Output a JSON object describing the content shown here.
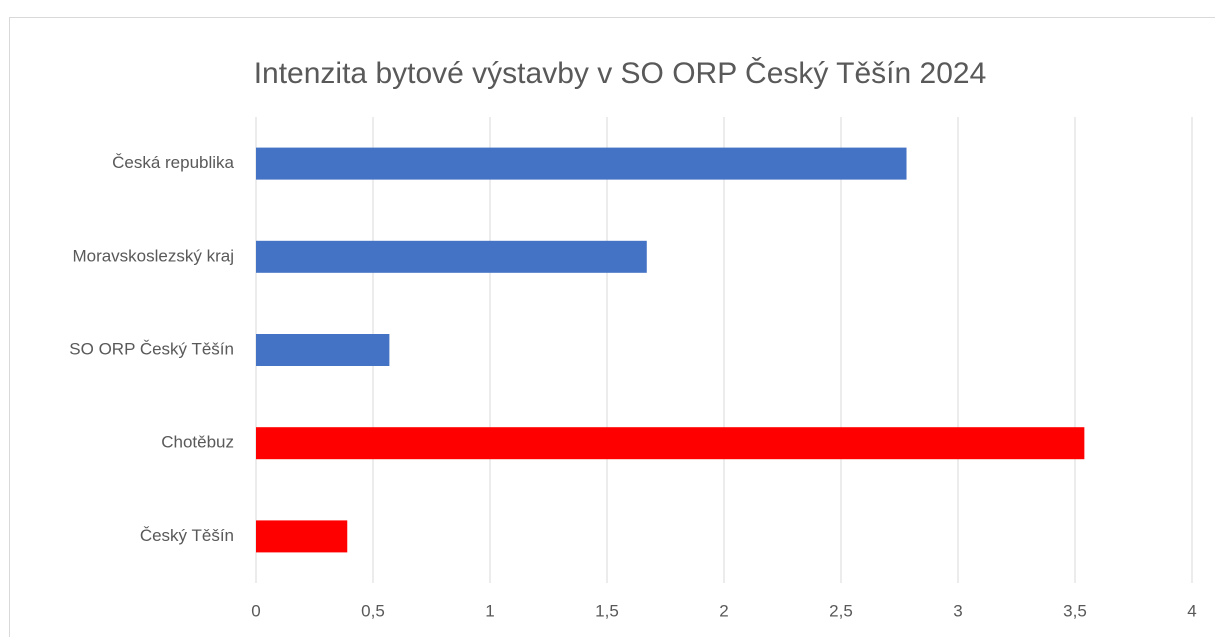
{
  "chart_data": {
    "type": "barh",
    "title": "Intenzita bytové výstavby v SO ORP Český Těšín 2024",
    "categories": [
      "Česká republika",
      "Moravskoslezský kraj",
      "SO ORP Český Těšín",
      "Chotěbuz",
      "Český Těšín"
    ],
    "values": [
      2.78,
      1.67,
      0.57,
      3.54,
      0.39
    ],
    "colors": [
      "#4472c4",
      "#4472c4",
      "#4472c4",
      "#ff0000",
      "#ff0000"
    ],
    "xlim": [
      0,
      4
    ],
    "xticks": [
      0,
      {
        "value": 0.5,
        "label": "0,5"
      },
      1,
      {
        "value": 1.5,
        "label": "1,5"
      },
      2,
      {
        "value": 2.5,
        "label": "2,5"
      },
      3,
      {
        "value": 3.5,
        "label": "3,5"
      },
      4
    ],
    "grid": true
  }
}
